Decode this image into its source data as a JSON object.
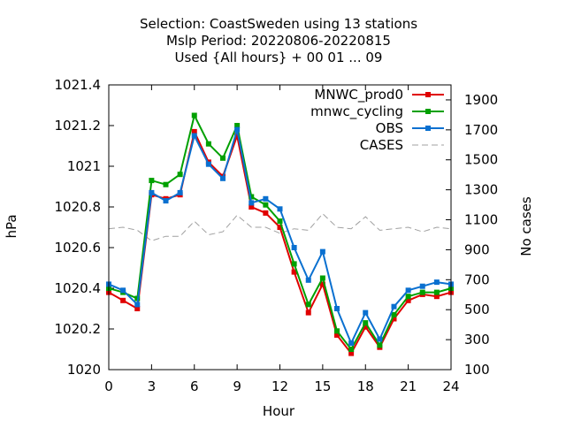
{
  "chart_data": {
    "type": "line",
    "title": {
      "line1": "Selection: CoastSweden using    13 stations",
      "line2": "Mslp   Period: 20220806-20220815",
      "line3": "Used {All hours} + 00 01 ... 09"
    },
    "xlabel": "Hour",
    "ylabel": "hPa",
    "y2label": "No cases",
    "xlim": [
      0,
      24
    ],
    "ylim": [
      1020,
      1021.4
    ],
    "y2lim": [
      100,
      2000
    ],
    "x_ticks": [
      0,
      3,
      6,
      9,
      12,
      15,
      18,
      21,
      24
    ],
    "y_ticks": [
      {
        "value": 1020,
        "label": "1020"
      },
      {
        "value": 1020.2,
        "label": "1020.2"
      },
      {
        "value": 1020.4,
        "label": "1020.4"
      },
      {
        "value": 1020.6,
        "label": "1020.6"
      },
      {
        "value": 1020.8,
        "label": "1020.8"
      },
      {
        "value": 1021,
        "label": "1021"
      },
      {
        "value": 1021.2,
        "label": "1021.2"
      },
      {
        "value": 1021.4,
        "label": "1021.4"
      }
    ],
    "y2_ticks": [
      100,
      300,
      500,
      700,
      900,
      1100,
      1300,
      1500,
      1700,
      1900
    ],
    "grid": false,
    "legend_position": "top-right",
    "x": [
      0,
      1,
      2,
      3,
      4,
      5,
      6,
      7,
      8,
      9,
      10,
      11,
      12,
      13,
      14,
      15,
      16,
      17,
      18,
      19,
      20,
      21,
      22,
      23,
      24
    ],
    "series": [
      {
        "name": "MNWC_prod0",
        "color": "#e00000",
        "axis": "left",
        "marker": true,
        "values": [
          1020.38,
          1020.34,
          1020.3,
          1020.86,
          1020.84,
          1020.86,
          1021.17,
          1021.02,
          1020.95,
          1021.15,
          1020.8,
          1020.77,
          1020.7,
          1020.48,
          1020.28,
          1020.42,
          1020.17,
          1020.08,
          1020.21,
          1020.11,
          1020.25,
          1020.34,
          1020.37,
          1020.36,
          1020.38
        ]
      },
      {
        "name": "mnwc_cycling",
        "color": "#00a000",
        "axis": "left",
        "marker": true,
        "values": [
          1020.4,
          1020.38,
          1020.35,
          1020.93,
          1020.91,
          1020.96,
          1021.25,
          1021.11,
          1021.04,
          1021.2,
          1020.85,
          1020.81,
          1020.73,
          1020.52,
          1020.32,
          1020.45,
          1020.19,
          1020.1,
          1020.23,
          1020.12,
          1020.27,
          1020.36,
          1020.38,
          1020.38,
          1020.4
        ]
      },
      {
        "name": "OBS",
        "color": "#0a70d0",
        "axis": "left",
        "marker": true,
        "values": [
          1020.42,
          1020.39,
          1020.32,
          1020.87,
          1020.83,
          1020.87,
          1021.15,
          1021.01,
          1020.94,
          1021.18,
          1020.82,
          1020.84,
          1020.79,
          1020.6,
          1020.44,
          1020.58,
          1020.3,
          1020.13,
          1020.28,
          1020.15,
          1020.31,
          1020.39,
          1020.41,
          1020.43,
          1020.42
        ]
      },
      {
        "name": "CASES",
        "color": "#a0a0a0",
        "axis": "right",
        "marker": false,
        "dashed": true,
        "values": [
          1040,
          1050,
          1030,
          960,
          990,
          990,
          1090,
          1000,
          1020,
          1130,
          1050,
          1050,
          1010,
          1040,
          1030,
          1140,
          1050,
          1040,
          1120,
          1030,
          1040,
          1050,
          1020,
          1050,
          1040
        ]
      }
    ]
  }
}
